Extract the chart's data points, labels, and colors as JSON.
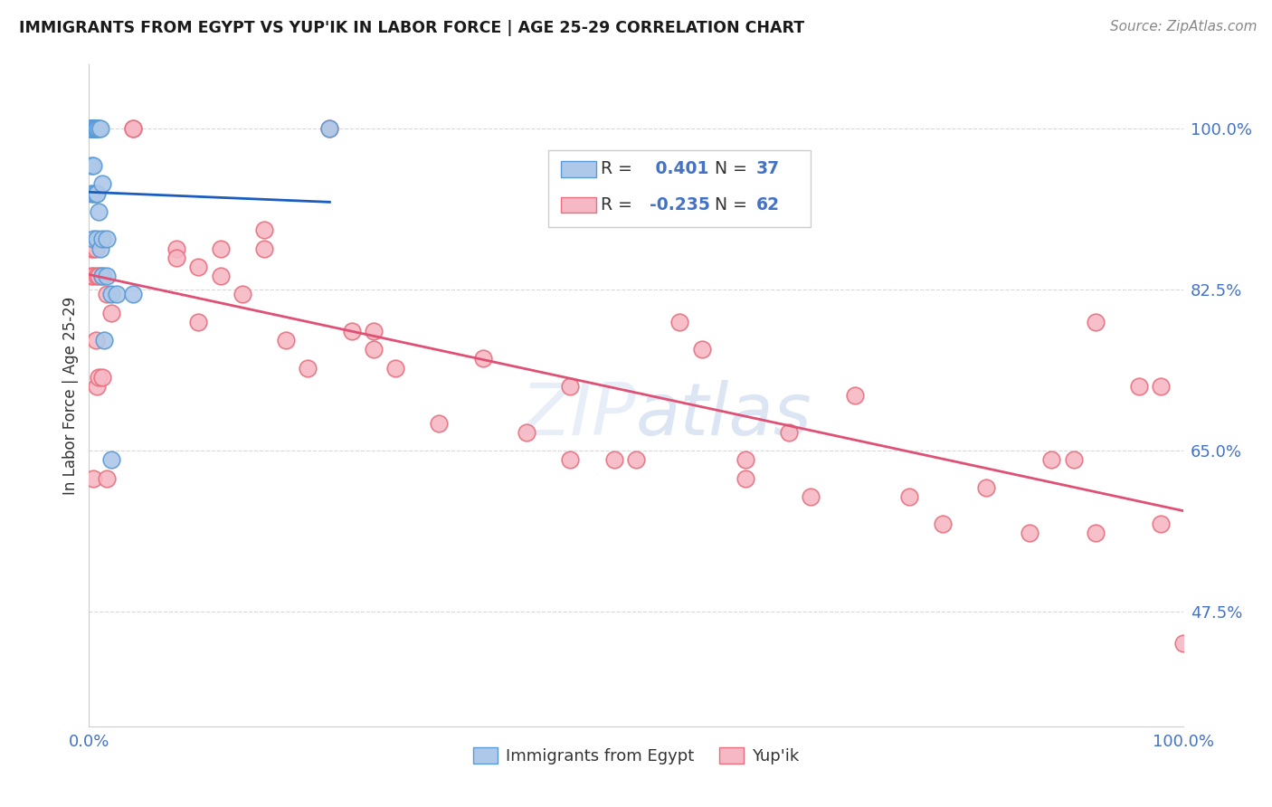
{
  "title": "IMMIGRANTS FROM EGYPT VS YUP'IK IN LABOR FORCE | AGE 25-29 CORRELATION CHART",
  "source": "Source: ZipAtlas.com",
  "ylabel": "In Labor Force | Age 25-29",
  "xlim": [
    0.0,
    1.0
  ],
  "ylim": [
    0.35,
    1.07
  ],
  "yticks": [
    0.475,
    0.65,
    0.825,
    1.0
  ],
  "ytick_labels": [
    "47.5%",
    "65.0%",
    "82.5%",
    "100.0%"
  ],
  "xtick_labels": [
    "0.0%",
    "100.0%"
  ],
  "xticks": [
    0.0,
    1.0
  ],
  "r_egypt": 0.401,
  "n_egypt": 37,
  "r_yupik": -0.235,
  "n_yupik": 62,
  "egypt_color": "#adc8e8",
  "egypt_edge_color": "#5b9bd5",
  "yupik_color": "#f5b8c4",
  "yupik_edge_color": "#e8707e",
  "egypt_line_color": "#1a5dbf",
  "yupik_line_color": "#e05075",
  "background_color": "#ffffff",
  "grid_color": "#d8d8d8",
  "title_color": "#1a1a1a",
  "tick_color": "#4472c4",
  "egypt_points_x": [
    0.002,
    0.002,
    0.002,
    0.002,
    0.002,
    0.002,
    0.002,
    0.002,
    0.002,
    0.004,
    0.004,
    0.004,
    0.004,
    0.004,
    0.004,
    0.006,
    0.006,
    0.006,
    0.007,
    0.007,
    0.007,
    0.007,
    0.009,
    0.009,
    0.01,
    0.01,
    0.012,
    0.012,
    0.012,
    0.014,
    0.016,
    0.016,
    0.02,
    0.02,
    0.025,
    0.04,
    0.22
  ],
  "egypt_points_y": [
    1.0,
    1.0,
    1.0,
    1.0,
    1.0,
    1.0,
    1.0,
    0.96,
    0.93,
    1.0,
    1.0,
    1.0,
    0.96,
    0.93,
    0.88,
    1.0,
    1.0,
    0.93,
    1.0,
    1.0,
    0.93,
    0.88,
    1.0,
    0.91,
    1.0,
    0.87,
    0.94,
    0.88,
    0.84,
    0.77,
    0.88,
    0.84,
    0.82,
    0.64,
    0.82,
    0.82,
    1.0
  ],
  "yupik_points_x": [
    0.002,
    0.002,
    0.002,
    0.002,
    0.004,
    0.004,
    0.004,
    0.006,
    0.006,
    0.007,
    0.007,
    0.009,
    0.009,
    0.012,
    0.012,
    0.016,
    0.016,
    0.02,
    0.04,
    0.04,
    0.08,
    0.08,
    0.1,
    0.1,
    0.12,
    0.12,
    0.14,
    0.16,
    0.16,
    0.18,
    0.2,
    0.22,
    0.24,
    0.26,
    0.26,
    0.28,
    0.32,
    0.36,
    0.4,
    0.44,
    0.44,
    0.48,
    0.5,
    0.54,
    0.56,
    0.6,
    0.6,
    0.64,
    0.66,
    0.7,
    0.75,
    0.78,
    0.82,
    0.86,
    0.88,
    0.9,
    0.92,
    0.92,
    0.96,
    0.98,
    0.98,
    1.0
  ],
  "yupik_points_y": [
    1.0,
    1.0,
    0.87,
    0.84,
    0.87,
    0.84,
    0.62,
    0.87,
    0.77,
    0.84,
    0.72,
    0.84,
    0.73,
    0.84,
    0.73,
    0.82,
    0.62,
    0.8,
    1.0,
    1.0,
    0.87,
    0.86,
    0.79,
    0.85,
    0.87,
    0.84,
    0.82,
    0.87,
    0.89,
    0.77,
    0.74,
    1.0,
    0.78,
    0.78,
    0.76,
    0.74,
    0.68,
    0.75,
    0.67,
    0.72,
    0.64,
    0.64,
    0.64,
    0.79,
    0.76,
    0.64,
    0.62,
    0.67,
    0.6,
    0.71,
    0.6,
    0.57,
    0.61,
    0.56,
    0.64,
    0.64,
    0.79,
    0.56,
    0.72,
    0.72,
    0.57,
    0.44
  ]
}
